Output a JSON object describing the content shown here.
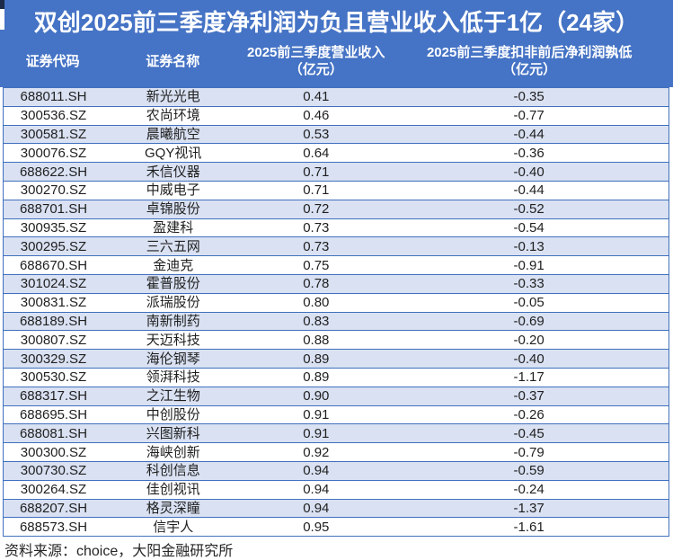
{
  "title": {
    "text": "双创2025前三季度净利润为负且营业收入低于1亿（24家）"
  },
  "header": {
    "col_code": "证券代码",
    "col_name": "证券名称",
    "col_revenue_line1": "2025前三季度营业收入",
    "col_revenue_line2": "（亿元）",
    "col_profit_line1": "2025前三季度扣非前后净利润孰低",
    "col_profit_line2": "（亿元）"
  },
  "footer": {
    "source": "资料来源：choice，大阳金融研究所"
  },
  "colors": {
    "banner_blue": "#4573C5",
    "row_border_blue": "#4070BE",
    "alt_row_blue": "#D9E1F2",
    "title_text": "#FFFFFF",
    "body_text": "#1F1F1F"
  },
  "chart_data": {
    "type": "table",
    "title": "双创2025前三季度净利润为负且营业收入低于1亿（24家）",
    "columns": [
      "证券代码",
      "证券名称",
      "2025前三季度营业收入（亿元）",
      "2025前三季度扣非前后净利润孰低（亿元）"
    ],
    "rows": [
      [
        "688011.SH",
        "新光光电",
        "0.41",
        "-0.35"
      ],
      [
        "300536.SZ",
        "农尚环境",
        "0.46",
        "-0.77"
      ],
      [
        "300581.SZ",
        "晨曦航空",
        "0.53",
        "-0.44"
      ],
      [
        "300076.SZ",
        "GQY视讯",
        "0.64",
        "-0.36"
      ],
      [
        "688622.SH",
        "禾信仪器",
        "0.71",
        "-0.40"
      ],
      [
        "300270.SZ",
        "中威电子",
        "0.71",
        "-0.44"
      ],
      [
        "688701.SH",
        "卓锦股份",
        "0.72",
        "-0.52"
      ],
      [
        "300935.SZ",
        "盈建科",
        "0.73",
        "-0.54"
      ],
      [
        "300295.SZ",
        "三六五网",
        "0.73",
        "-0.13"
      ],
      [
        "688670.SH",
        "金迪克",
        "0.75",
        "-0.91"
      ],
      [
        "301024.SZ",
        "霍普股份",
        "0.78",
        "-0.33"
      ],
      [
        "300831.SZ",
        "派瑞股份",
        "0.80",
        "-0.05"
      ],
      [
        "688189.SH",
        "南新制药",
        "0.83",
        "-0.69"
      ],
      [
        "300807.SZ",
        "天迈科技",
        "0.88",
        "-0.20"
      ],
      [
        "300329.SZ",
        "海伦钢琴",
        "0.89",
        "-0.40"
      ],
      [
        "300530.SZ",
        "领湃科技",
        "0.89",
        "-1.17"
      ],
      [
        "688317.SH",
        "之江生物",
        "0.90",
        "-0.37"
      ],
      [
        "688695.SH",
        "中创股份",
        "0.91",
        "-0.26"
      ],
      [
        "688081.SH",
        "兴图新科",
        "0.91",
        "-0.45"
      ],
      [
        "300300.SZ",
        "海峡创新",
        "0.92",
        "-0.79"
      ],
      [
        "300730.SZ",
        "科创信息",
        "0.94",
        "-0.59"
      ],
      [
        "300264.SZ",
        "佳创视讯",
        "0.94",
        "-0.24"
      ],
      [
        "688207.SH",
        "格灵深瞳",
        "0.94",
        "-1.37"
      ],
      [
        "688573.SH",
        "信宇人",
        "0.95",
        "-1.61"
      ]
    ],
    "source": "资料来源：choice，大阳金融研究所",
    "layout": {
      "alternating_row_shading": true,
      "first_row_shaded": true,
      "grid": "horizontal-only"
    }
  }
}
